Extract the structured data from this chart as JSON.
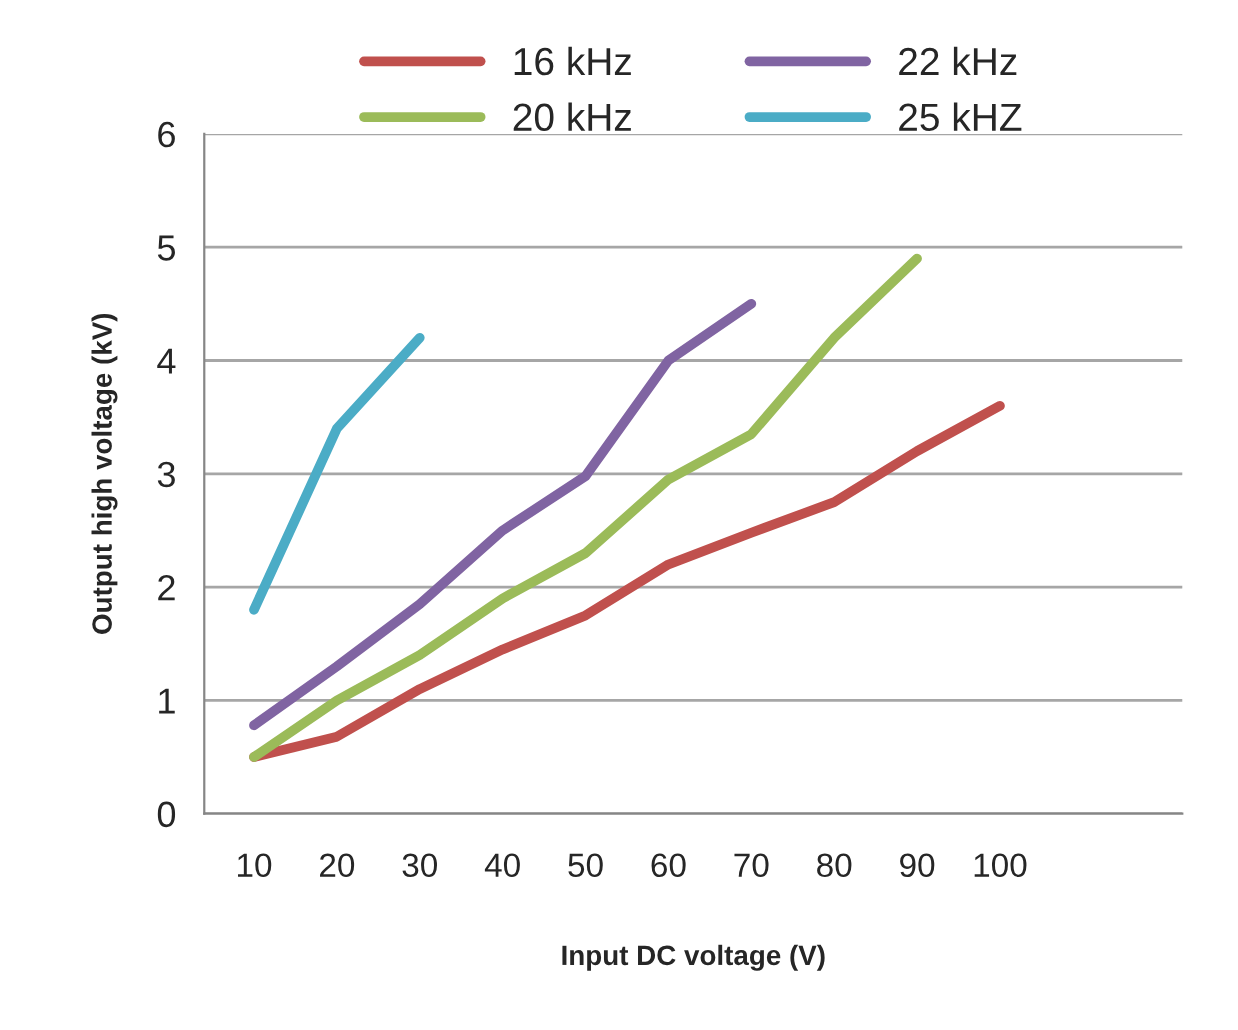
{
  "chart_data": {
    "type": "line",
    "xlabel": "Input DC voltage (V)",
    "ylabel": "Output high voltage (kV)",
    "categories": [
      "10",
      "20",
      "30",
      "40",
      "50",
      "60",
      "70",
      "80",
      "90",
      "100"
    ],
    "series": [
      {
        "name": "16 kHz",
        "color": "#c0504d",
        "values": [
          0.5,
          0.68,
          1.1,
          1.45,
          1.75,
          2.2,
          2.48,
          2.75,
          3.2,
          3.6
        ]
      },
      {
        "name": "20 kHz",
        "color": "#9bbb59",
        "values": [
          0.5,
          1.0,
          1.4,
          1.9,
          2.3,
          2.95,
          3.35,
          4.2,
          4.9,
          null
        ]
      },
      {
        "name": "22 kHz",
        "color": "#8064a2",
        "values": [
          0.78,
          1.3,
          1.85,
          2.5,
          2.98,
          4.0,
          4.5,
          null,
          null,
          null
        ]
      },
      {
        "name": "25 kHZ",
        "color": "#4bacc6",
        "values": [
          1.8,
          3.4,
          4.2,
          null,
          null,
          null,
          null,
          null,
          null,
          null
        ]
      }
    ],
    "ylim": [
      0,
      6
    ],
    "yticks": [
      0,
      1,
      2,
      3,
      4,
      5,
      6
    ],
    "grid": "y",
    "legend": "top",
    "marker": "none",
    "line_style": "solid"
  }
}
